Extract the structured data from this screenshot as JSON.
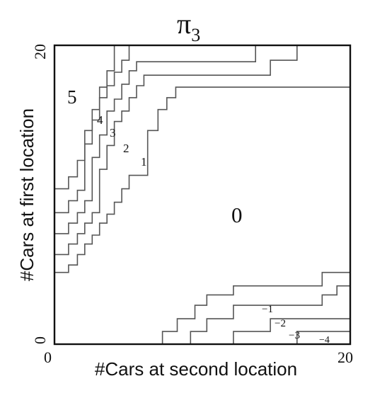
{
  "figure": {
    "title_symbol": "π",
    "title_subscript": "3",
    "x_axis": {
      "label": "#Cars at second location",
      "min_label": "0",
      "max_label": "20",
      "range": [
        0,
        20
      ]
    },
    "y_axis": {
      "label": "#Cars at first location",
      "min_label": "0",
      "max_label": "20",
      "range": [
        0,
        20
      ]
    },
    "region_labels": [
      {
        "text": "5"
      },
      {
        "text": "4"
      },
      {
        "text": "3"
      },
      {
        "text": "2"
      },
      {
        "text": "1"
      },
      {
        "text": "0"
      },
      {
        "text": "−1"
      },
      {
        "text": "−2"
      },
      {
        "text": "−3"
      },
      {
        "text": "−4"
      }
    ],
    "boundaries": [
      {
        "between": "5|4",
        "points": [
          [
            0,
            10.4
          ],
          [
            0.95,
            10.4
          ],
          [
            0.95,
            11.2
          ],
          [
            1.55,
            11.2
          ],
          [
            1.55,
            12.3
          ],
          [
            2.05,
            12.3
          ],
          [
            2.05,
            14.3
          ],
          [
            2.55,
            14.3
          ],
          [
            2.55,
            15.7
          ],
          [
            3.05,
            15.7
          ],
          [
            3.05,
            17.2
          ],
          [
            3.55,
            17.2
          ],
          [
            3.55,
            18.3
          ],
          [
            4.05,
            18.3
          ],
          [
            4.05,
            20
          ]
        ]
      },
      {
        "between": "4|3",
        "points": [
          [
            0,
            8.8
          ],
          [
            0.95,
            8.8
          ],
          [
            0.95,
            9.6
          ],
          [
            1.55,
            9.6
          ],
          [
            1.55,
            10.3
          ],
          [
            2.05,
            10.3
          ],
          [
            2.05,
            13.4
          ],
          [
            2.55,
            13.4
          ],
          [
            2.55,
            15.0
          ],
          [
            3.05,
            15.0
          ],
          [
            3.05,
            16.5
          ],
          [
            3.55,
            16.5
          ],
          [
            3.55,
            17.3
          ],
          [
            4.05,
            17.3
          ],
          [
            4.05,
            18.2
          ],
          [
            4.55,
            18.2
          ],
          [
            4.55,
            19.0
          ],
          [
            5.05,
            19.0
          ],
          [
            5.05,
            20
          ]
        ]
      },
      {
        "between": "3|2",
        "points": [
          [
            0,
            7.4
          ],
          [
            0.95,
            7.4
          ],
          [
            0.95,
            8.1
          ],
          [
            1.55,
            8.1
          ],
          [
            1.55,
            8.8
          ],
          [
            2.05,
            8.8
          ],
          [
            2.05,
            9.6
          ],
          [
            2.55,
            9.6
          ],
          [
            2.55,
            12.5
          ],
          [
            3.05,
            12.5
          ],
          [
            3.05,
            14.0
          ],
          [
            3.55,
            14.0
          ],
          [
            3.55,
            15.6
          ],
          [
            4.05,
            15.6
          ],
          [
            4.05,
            16.4
          ],
          [
            4.55,
            16.4
          ],
          [
            4.55,
            17.4
          ],
          [
            5.05,
            17.4
          ],
          [
            5.05,
            18.3
          ],
          [
            5.55,
            18.3
          ],
          [
            5.55,
            18.9
          ],
          [
            13.6,
            18.9
          ],
          [
            13.6,
            20
          ]
        ]
      },
      {
        "between": "2|1",
        "points": [
          [
            0,
            6.0
          ],
          [
            0.95,
            6.0
          ],
          [
            0.95,
            6.7
          ],
          [
            1.55,
            6.7
          ],
          [
            1.55,
            7.4
          ],
          [
            2.05,
            7.4
          ],
          [
            2.05,
            8.1
          ],
          [
            2.55,
            8.1
          ],
          [
            2.55,
            8.8
          ],
          [
            3.05,
            8.8
          ],
          [
            3.05,
            11.7
          ],
          [
            3.55,
            11.7
          ],
          [
            3.55,
            13.3
          ],
          [
            4.05,
            13.3
          ],
          [
            4.05,
            14.9
          ],
          [
            4.55,
            14.9
          ],
          [
            4.55,
            15.6
          ],
          [
            5.05,
            15.6
          ],
          [
            5.05,
            16.5
          ],
          [
            5.55,
            16.5
          ],
          [
            5.55,
            17.3
          ],
          [
            6.05,
            17.3
          ],
          [
            6.05,
            18.0
          ],
          [
            14.6,
            18.0
          ],
          [
            14.6,
            19.0
          ],
          [
            16.4,
            19.0
          ],
          [
            16.4,
            20
          ]
        ]
      },
      {
        "between": "1|0",
        "points": [
          [
            0,
            4.8
          ],
          [
            0.95,
            4.8
          ],
          [
            0.95,
            5.3
          ],
          [
            1.55,
            5.3
          ],
          [
            1.55,
            6.0
          ],
          [
            2.05,
            6.0
          ],
          [
            2.05,
            6.7
          ],
          [
            2.55,
            6.7
          ],
          [
            2.55,
            7.3
          ],
          [
            3.05,
            7.3
          ],
          [
            3.05,
            8.1
          ],
          [
            3.55,
            8.1
          ],
          [
            3.55,
            8.7
          ],
          [
            4.05,
            8.7
          ],
          [
            4.05,
            9.5
          ],
          [
            4.55,
            9.5
          ],
          [
            4.55,
            10.4
          ],
          [
            5.05,
            10.4
          ],
          [
            5.05,
            11.3
          ],
          [
            6.3,
            11.3
          ],
          [
            6.3,
            14.3
          ],
          [
            7.0,
            14.3
          ],
          [
            7.0,
            15.7
          ],
          [
            7.6,
            15.7
          ],
          [
            7.6,
            16.5
          ],
          [
            8.2,
            16.5
          ],
          [
            8.2,
            17.2
          ],
          [
            20,
            17.2
          ]
        ]
      },
      {
        "between": "0|-1",
        "points": [
          [
            7.3,
            0
          ],
          [
            7.3,
            0.85
          ],
          [
            8.3,
            0.85
          ],
          [
            8.3,
            1.7
          ],
          [
            9.5,
            1.7
          ],
          [
            9.5,
            2.6
          ],
          [
            10.3,
            2.6
          ],
          [
            10.3,
            3.3
          ],
          [
            12.1,
            3.3
          ],
          [
            12.1,
            3.9
          ],
          [
            18.1,
            3.9
          ],
          [
            18.1,
            4.8
          ],
          [
            20,
            4.8
          ]
        ]
      },
      {
        "between": "-1|-2",
        "points": [
          [
            9.2,
            0
          ],
          [
            9.2,
            0.85
          ],
          [
            10.3,
            0.85
          ],
          [
            10.3,
            1.7
          ],
          [
            12.1,
            1.7
          ],
          [
            12.1,
            2.6
          ],
          [
            18.1,
            2.6
          ],
          [
            18.1,
            3.3
          ],
          [
            19.1,
            3.3
          ],
          [
            19.1,
            3.9
          ],
          [
            20,
            3.9
          ]
        ]
      },
      {
        "between": "-2|-3",
        "points": [
          [
            12.1,
            0
          ],
          [
            12.1,
            0.85
          ],
          [
            14.6,
            0.85
          ],
          [
            14.6,
            1.7
          ],
          [
            20,
            1.7
          ]
        ]
      },
      {
        "between": "-3|-4",
        "points": [
          [
            16.4,
            0
          ],
          [
            16.4,
            0.85
          ],
          [
            20,
            0.85
          ]
        ]
      }
    ]
  }
}
